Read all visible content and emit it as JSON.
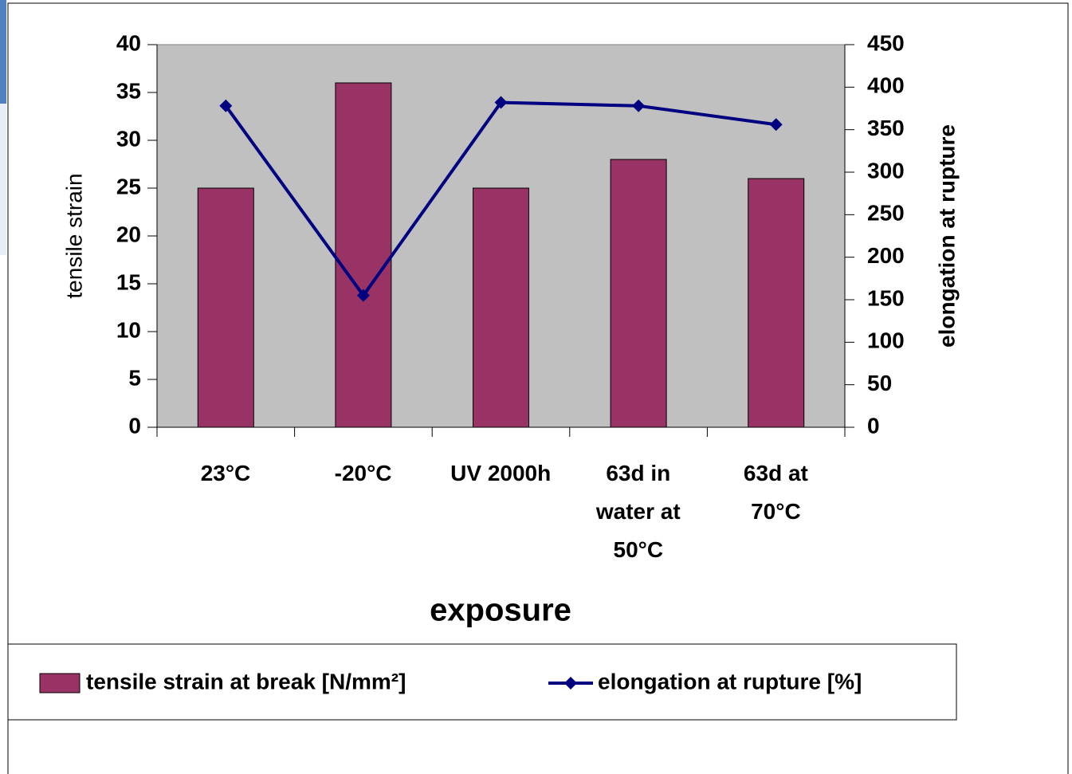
{
  "chart_data": {
    "type": "bar",
    "x_label": "exposure",
    "y_label": "tensile strain",
    "y2_label": "elongation at rupture",
    "categories": [
      "23°C",
      "-20°C",
      "UV 2000h",
      "63d in\nwater at\n50°C",
      "63d at\n70°C"
    ],
    "series": [
      {
        "name": "tensile strain at break [N/mm²]",
        "type": "bar",
        "color": "#993366",
        "values": [
          25,
          36,
          25,
          28,
          26
        ]
      },
      {
        "name": "elongation at rupture [%]",
        "type": "line",
        "axis": "y2",
        "color": "#000080",
        "values": [
          378,
          155,
          382,
          378,
          356
        ]
      }
    ],
    "ylim": [
      0,
      40
    ],
    "yticks": [
      0,
      5,
      10,
      15,
      20,
      25,
      30,
      35,
      40
    ],
    "y2lim": [
      0,
      450
    ],
    "y2ticks": [
      0,
      50,
      100,
      150,
      200,
      250,
      300,
      350,
      400,
      450
    ],
    "plot_background": "#c0c0c0",
    "legend": "bottom"
  }
}
